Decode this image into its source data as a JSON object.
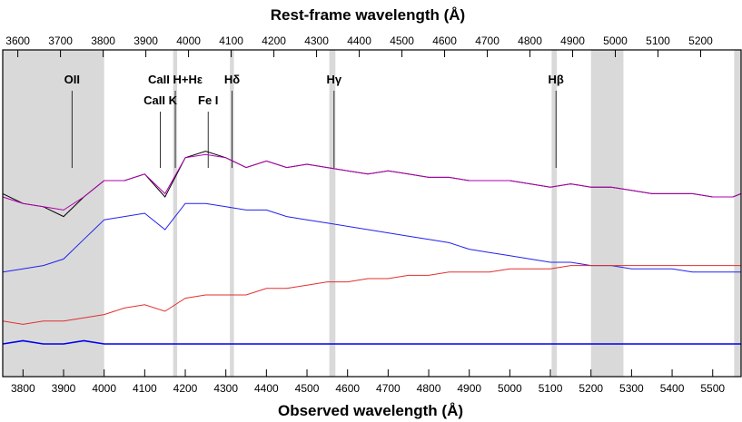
{
  "chart_data": {
    "type": "line",
    "title": "",
    "xlabel_top": "Rest-frame wavelength (Å)",
    "xlabel_bottom": "Observed wavelength (Å)",
    "ylabel": "",
    "xlim_observed": [
      3750,
      5570
    ],
    "xlim_rest": [
      3600,
      5300
    ],
    "redshift": 0.052,
    "ylim": [
      0,
      1
    ],
    "x_ticks_bottom": [
      3800,
      3900,
      4000,
      4100,
      4200,
      4300,
      4400,
      4500,
      4600,
      4700,
      4800,
      4900,
      5000,
      5100,
      5200,
      5300,
      5400,
      5500
    ],
    "x_ticks_top": [
      3600,
      3700,
      3800,
      3900,
      4000,
      4100,
      4200,
      4300,
      4400,
      4500,
      4600,
      4700,
      4800,
      4900,
      5000,
      5100,
      5200
    ],
    "grid": false,
    "masked_regions_observed": [
      [
        3750,
        4000
      ],
      [
        4170,
        4180
      ],
      [
        4310,
        4320
      ],
      [
        4555,
        4570
      ],
      [
        5103,
        5116
      ],
      [
        5200,
        5280
      ],
      [
        5553,
        5570
      ]
    ],
    "mask_color": "#d9d9d9",
    "line_markers": [
      {
        "label": "OII",
        "rest_wavelength": 3727
      },
      {
        "label": "CaII H+Hε",
        "rest_wavelength": 3969
      },
      {
        "label": "CaII K",
        "rest_wavelength": 3934
      },
      {
        "label": "Fe I",
        "rest_wavelength": 4046
      },
      {
        "label": "Hδ",
        "rest_wavelength": 4102
      },
      {
        "label": "Hγ",
        "rest_wavelength": 4341
      },
      {
        "label": "Hβ",
        "rest_wavelength": 4861
      }
    ],
    "series": [
      {
        "color": "#000000",
        "x": [
          3750,
          3800,
          3850,
          3900,
          3950,
          4000,
          4050,
          4100,
          4150,
          4200,
          4250,
          4300,
          4350,
          4400,
          4450,
          4500,
          4550,
          4600,
          4650,
          4700,
          4750,
          4800,
          4850,
          4900,
          4950,
          5000,
          5050,
          5100,
          5150,
          5200,
          5250,
          5300,
          5350,
          5400,
          5450,
          5500,
          5550,
          5570
        ],
        "y": [
          0.56,
          0.53,
          0.52,
          0.49,
          0.55,
          0.6,
          0.6,
          0.62,
          0.55,
          0.67,
          0.69,
          0.67,
          0.64,
          0.66,
          0.64,
          0.65,
          0.64,
          0.63,
          0.62,
          0.63,
          0.62,
          0.61,
          0.61,
          0.6,
          0.6,
          0.6,
          0.59,
          0.58,
          0.59,
          0.58,
          0.58,
          0.57,
          0.56,
          0.56,
          0.56,
          0.55,
          0.55,
          0.56
        ]
      },
      {
        "color": "#b000b0",
        "x": [
          3750,
          3800,
          3850,
          3900,
          3950,
          4000,
          4050,
          4100,
          4150,
          4200,
          4250,
          4300,
          4350,
          4400,
          4450,
          4500,
          4550,
          4600,
          4650,
          4700,
          4750,
          4800,
          4850,
          4900,
          4950,
          5000,
          5050,
          5100,
          5150,
          5200,
          5250,
          5300,
          5350,
          5400,
          5450,
          5500,
          5550,
          5570
        ],
        "y": [
          0.55,
          0.53,
          0.52,
          0.51,
          0.55,
          0.6,
          0.6,
          0.62,
          0.56,
          0.67,
          0.68,
          0.67,
          0.64,
          0.66,
          0.64,
          0.65,
          0.64,
          0.63,
          0.62,
          0.63,
          0.62,
          0.61,
          0.61,
          0.6,
          0.6,
          0.6,
          0.59,
          0.58,
          0.59,
          0.58,
          0.58,
          0.57,
          0.56,
          0.56,
          0.56,
          0.55,
          0.55,
          0.56
        ]
      },
      {
        "color": "#2222ee",
        "x": [
          3750,
          3800,
          3850,
          3900,
          3950,
          4000,
          4050,
          4100,
          4150,
          4200,
          4250,
          4300,
          4350,
          4400,
          4450,
          4500,
          4550,
          4600,
          4650,
          4700,
          4750,
          4800,
          4850,
          4900,
          4950,
          5000,
          5050,
          5100,
          5150,
          5200,
          5250,
          5300,
          5350,
          5400,
          5450,
          5500,
          5550,
          5570
        ],
        "y": [
          0.32,
          0.33,
          0.34,
          0.36,
          0.42,
          0.48,
          0.49,
          0.5,
          0.45,
          0.53,
          0.53,
          0.52,
          0.51,
          0.51,
          0.49,
          0.48,
          0.47,
          0.46,
          0.45,
          0.44,
          0.43,
          0.42,
          0.41,
          0.39,
          0.38,
          0.37,
          0.36,
          0.35,
          0.35,
          0.34,
          0.34,
          0.33,
          0.33,
          0.33,
          0.32,
          0.32,
          0.32,
          0.32
        ]
      },
      {
        "color": "#e03030",
        "x": [
          3750,
          3800,
          3850,
          3900,
          3950,
          4000,
          4050,
          4100,
          4150,
          4200,
          4250,
          4300,
          4350,
          4400,
          4450,
          4500,
          4550,
          4600,
          4650,
          4700,
          4750,
          4800,
          4850,
          4900,
          4950,
          5000,
          5050,
          5100,
          5150,
          5200,
          5250,
          5300,
          5350,
          5400,
          5450,
          5500,
          5550,
          5570
        ],
        "y": [
          0.17,
          0.16,
          0.17,
          0.17,
          0.18,
          0.19,
          0.21,
          0.22,
          0.2,
          0.24,
          0.25,
          0.25,
          0.25,
          0.27,
          0.27,
          0.28,
          0.29,
          0.29,
          0.3,
          0.3,
          0.31,
          0.31,
          0.32,
          0.32,
          0.32,
          0.33,
          0.33,
          0.33,
          0.34,
          0.34,
          0.34,
          0.34,
          0.34,
          0.34,
          0.34,
          0.34,
          0.34,
          0.34
        ]
      },
      {
        "color": "#0000ee",
        "x": [
          3750,
          3800,
          3850,
          3900,
          3950,
          4000,
          4050,
          4100,
          4150,
          4200,
          4250,
          4300,
          4350,
          4400,
          4450,
          4500,
          4550,
          4600,
          4650,
          4700,
          4750,
          4800,
          4850,
          4900,
          4950,
          5000,
          5050,
          5100,
          5150,
          5200,
          5250,
          5300,
          5350,
          5400,
          5450,
          5500,
          5550,
          5570
        ],
        "y": [
          0.1,
          0.11,
          0.1,
          0.1,
          0.11,
          0.1,
          0.1,
          0.1,
          0.1,
          0.1,
          0.1,
          0.1,
          0.1,
          0.1,
          0.1,
          0.1,
          0.1,
          0.1,
          0.1,
          0.1,
          0.1,
          0.1,
          0.1,
          0.1,
          0.1,
          0.1,
          0.1,
          0.1,
          0.1,
          0.1,
          0.1,
          0.1,
          0.1,
          0.1,
          0.1,
          0.1,
          0.1,
          0.1
        ]
      }
    ]
  }
}
